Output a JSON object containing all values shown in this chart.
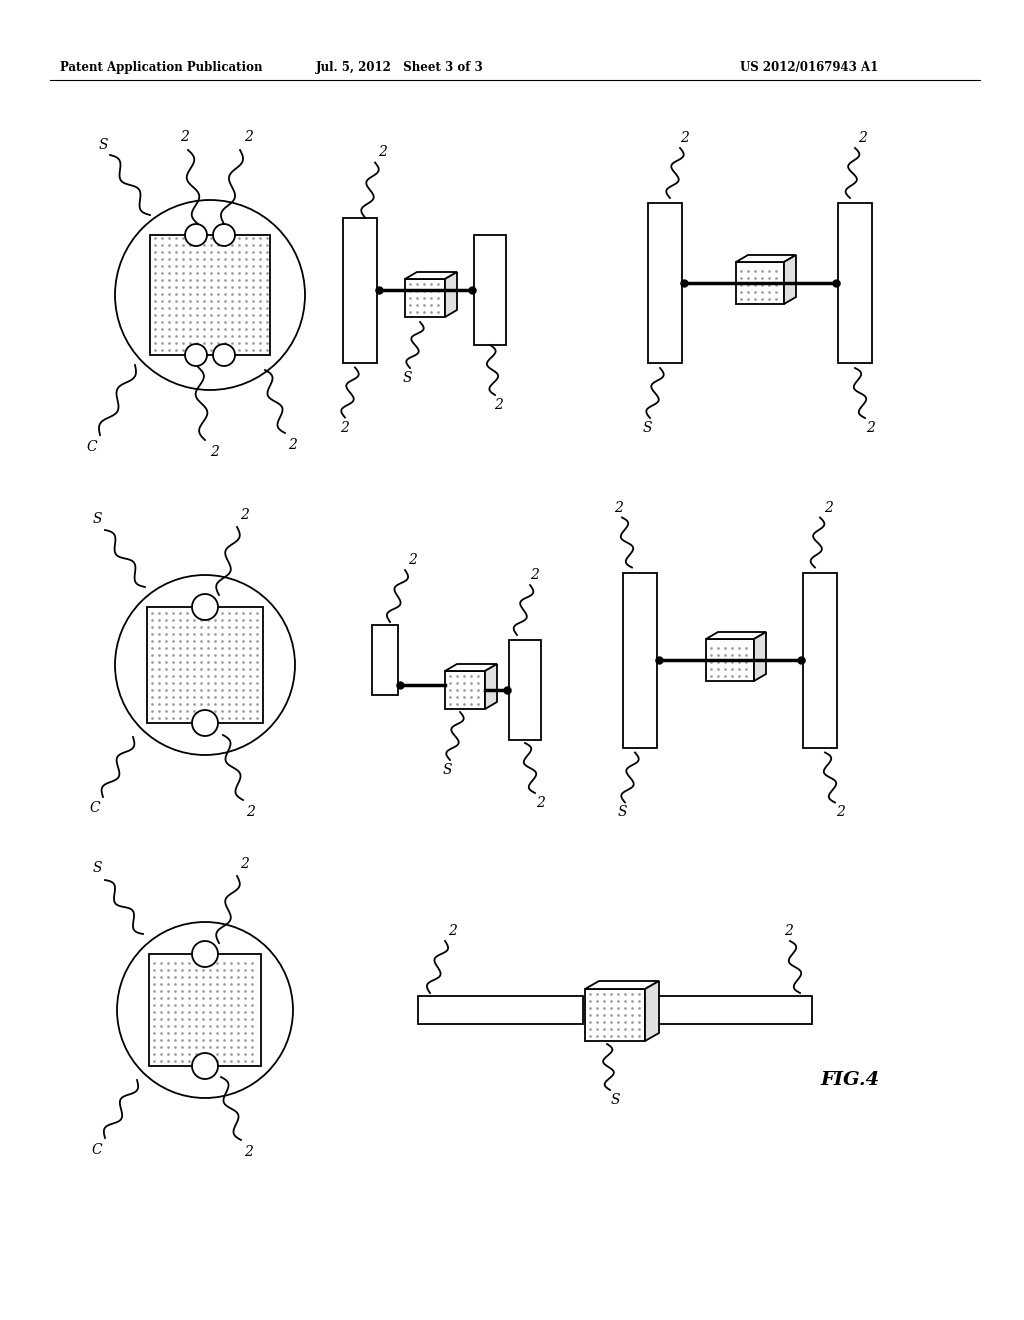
{
  "header_left": "Patent Application Publication",
  "header_mid": "Jul. 5, 2012   Sheet 3 of 3",
  "header_right": "US 2012/0167943 A1",
  "fig_label": "FIG.4",
  "bg_color": "#ffffff",
  "line_color": "#000000"
}
